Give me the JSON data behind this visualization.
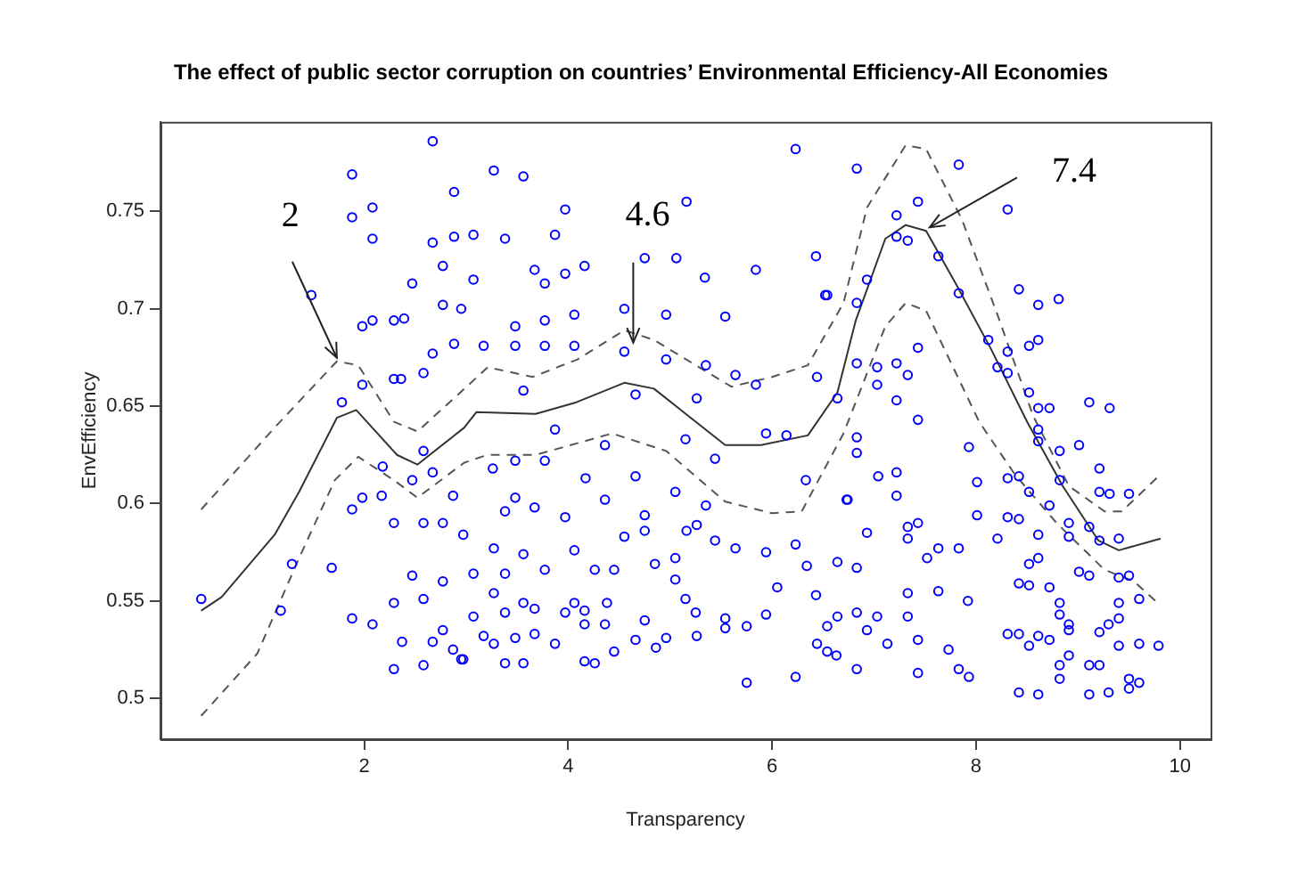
{
  "chart_data": {
    "type": "scatter",
    "title": "The effect of public sector corruption on countries’ Environmental Efficiency-All Economies",
    "xlabel": "Transparency",
    "ylabel": "EnvEfficiency",
    "xlim": [
      0.0,
      10.3
    ],
    "xticks": [
      2,
      4,
      6,
      8,
      10
    ],
    "ylim": [
      0.479,
      0.796
    ],
    "yticks": [
      0.5,
      0.55,
      0.6,
      0.65,
      0.7,
      0.75
    ],
    "series": [
      {
        "type": "scatter",
        "marker": "circle",
        "color": "#0000ff",
        "x": [
          0.4,
          1.18,
          1.29,
          1.48,
          1.68,
          1.78,
          1.88,
          1.88,
          1.88,
          1.88,
          2.08,
          2.08,
          1.98,
          1.98,
          1.98,
          2.08,
          2.08,
          2.29,
          2.39,
          2.29,
          2.36,
          2.18,
          2.17,
          2.29,
          2.29,
          2.29,
          2.37,
          2.47,
          2.47,
          2.47,
          2.58,
          2.58,
          2.58,
          2.58,
          2.58,
          2.67,
          2.67,
          2.67,
          2.67,
          2.67,
          2.77,
          2.77,
          2.77,
          2.77,
          2.77,
          2.88,
          2.88,
          2.88,
          2.87,
          2.87,
          2.95,
          2.95,
          3.27,
          3.56,
          3.07,
          3.38,
          3.87,
          3.97,
          3.07,
          3.67,
          3.77,
          3.97,
          4.16,
          4.75,
          5.06,
          5.16,
          5.34,
          5.84,
          6.23,
          6.43,
          6.52,
          3.48,
          3.77,
          4.06,
          4.55,
          4.96,
          5.54,
          3.17,
          3.48,
          3.77,
          4.06,
          4.55,
          4.96,
          5.35,
          5.64,
          5.84,
          6.44,
          3.56,
          4.66,
          5.26,
          3.87,
          4.36,
          5.94,
          6.14,
          5.15,
          3.26,
          3.48,
          3.77,
          4.17,
          4.66,
          5.05,
          5.44,
          6.33,
          3.48,
          3.67,
          3.97,
          4.36,
          4.75,
          5.35,
          6.73,
          2.97,
          3.38,
          3.27,
          3.56,
          4.06,
          4.55,
          4.75,
          5.16,
          5.26,
          5.44,
          5.64,
          5.94,
          6.23,
          6.34,
          6.64,
          4.85,
          5.05,
          3.07,
          3.38,
          3.77,
          4.26,
          4.45,
          5.05,
          5.15,
          5.25,
          6.05,
          6.43,
          3.27,
          3.56,
          3.67,
          4.06,
          4.38,
          3.97,
          3.07,
          3.38,
          4.16,
          4.75,
          5.54,
          5.94,
          6.64,
          3.17,
          3.48,
          3.67,
          3.87,
          4.16,
          4.36,
          4.66,
          4.86,
          4.96,
          5.26,
          5.54,
          5.75,
          6.44,
          6.63,
          2.97,
          3.38,
          3.56,
          4.16,
          4.26,
          4.45,
          5.75,
          6.23,
          3.27,
          6.83,
          7.83,
          8.31,
          7.43,
          7.22,
          7.22,
          7.33,
          7.63,
          7.83,
          6.93,
          6.54,
          6.83,
          8.42,
          8.61,
          8.81,
          8.12,
          8.31,
          8.52,
          8.61,
          7.43,
          8.21,
          8.31,
          6.83,
          7.03,
          7.22,
          7.33,
          7.03,
          7.22,
          6.64,
          8.52,
          8.61,
          8.72,
          9.11,
          9.31,
          7.43,
          8.61,
          8.61,
          7.93,
          9.01,
          8.82,
          6.83,
          6.83,
          7.04,
          7.22,
          8.01,
          8.31,
          8.42,
          8.52,
          8.82,
          9.21,
          9.21,
          9.31,
          9.5,
          6.74,
          7.22,
          8.01,
          8.31,
          8.42,
          8.72,
          8.91,
          9.11,
          7.33,
          7.43,
          6.93,
          7.33,
          8.21,
          8.61,
          8.91,
          9.21,
          9.4,
          9.6,
          7.63,
          7.83,
          7.52,
          6.83,
          8.52,
          8.61,
          9.01,
          9.11,
          9.4,
          9.5,
          8.42,
          8.52,
          8.72,
          7.33,
          7.63,
          7.92,
          8.82,
          9.4,
          6.83,
          7.03,
          7.33,
          8.82,
          8.91,
          9.4,
          6.54,
          6.93,
          7.13,
          7.43,
          7.73,
          8.31,
          8.42,
          8.52,
          8.61,
          8.72,
          8.91,
          9.21,
          9.3,
          9.4,
          9.6,
          9.79,
          6.54,
          8.91,
          9.11,
          9.21,
          8.82,
          6.83,
          7.43,
          7.83,
          7.93,
          8.82,
          9.5,
          9.6,
          8.42,
          8.61,
          9.11,
          9.3,
          9.5
        ],
        "values": [
          0.551,
          0.545,
          0.569,
          0.707,
          0.567,
          0.652,
          0.769,
          0.747,
          0.541,
          0.597,
          0.752,
          0.736,
          0.603,
          0.661,
          0.691,
          0.694,
          0.538,
          0.694,
          0.695,
          0.664,
          0.664,
          0.619,
          0.604,
          0.59,
          0.549,
          0.515,
          0.529,
          0.713,
          0.612,
          0.563,
          0.667,
          0.627,
          0.59,
          0.551,
          0.517,
          0.786,
          0.734,
          0.677,
          0.616,
          0.529,
          0.722,
          0.702,
          0.59,
          0.56,
          0.535,
          0.76,
          0.737,
          0.682,
          0.604,
          0.525,
          0.7,
          0.52,
          0.771,
          0.768,
          0.738,
          0.736,
          0.738,
          0.751,
          0.715,
          0.72,
          0.713,
          0.718,
          0.722,
          0.726,
          0.726,
          0.755,
          0.716,
          0.72,
          0.782,
          0.727,
          0.707,
          0.691,
          0.694,
          0.697,
          0.7,
          0.697,
          0.696,
          0.681,
          0.681,
          0.681,
          0.681,
          0.678,
          0.674,
          0.671,
          0.666,
          0.661,
          0.665,
          0.658,
          0.656,
          0.654,
          0.638,
          0.63,
          0.636,
          0.635,
          0.633,
          0.618,
          0.622,
          0.622,
          0.613,
          0.614,
          0.606,
          0.623,
          0.612,
          0.603,
          0.598,
          0.593,
          0.602,
          0.594,
          0.599,
          0.602,
          0.584,
          0.596,
          0.577,
          0.574,
          0.576,
          0.583,
          0.586,
          0.586,
          0.589,
          0.581,
          0.577,
          0.575,
          0.579,
          0.568,
          0.57,
          0.569,
          0.572,
          0.564,
          0.564,
          0.566,
          0.566,
          0.566,
          0.561,
          0.551,
          0.544,
          0.557,
          0.553,
          0.554,
          0.549,
          0.546,
          0.549,
          0.549,
          0.544,
          0.542,
          0.544,
          0.545,
          0.54,
          0.541,
          0.543,
          0.542,
          0.532,
          0.531,
          0.533,
          0.528,
          0.538,
          0.538,
          0.53,
          0.526,
          0.531,
          0.532,
          0.536,
          0.537,
          0.528,
          0.522,
          0.52,
          0.518,
          0.518,
          0.519,
          0.518,
          0.524,
          0.508,
          0.511,
          0.528,
          0.772,
          0.774,
          0.751,
          0.755,
          0.748,
          0.737,
          0.735,
          0.727,
          0.708,
          0.715,
          0.707,
          0.703,
          0.71,
          0.702,
          0.705,
          0.684,
          0.678,
          0.681,
          0.684,
          0.68,
          0.67,
          0.667,
          0.672,
          0.67,
          0.672,
          0.666,
          0.661,
          0.653,
          0.654,
          0.657,
          0.649,
          0.649,
          0.652,
          0.649,
          0.643,
          0.638,
          0.632,
          0.629,
          0.63,
          0.627,
          0.634,
          0.626,
          0.614,
          0.616,
          0.611,
          0.613,
          0.614,
          0.606,
          0.612,
          0.618,
          0.606,
          0.605,
          0.605,
          0.602,
          0.604,
          0.594,
          0.593,
          0.592,
          0.599,
          0.59,
          0.588,
          0.588,
          0.59,
          0.585,
          0.582,
          0.582,
          0.584,
          0.583,
          0.581,
          0.582,
          0.551,
          0.577,
          0.577,
          0.572,
          0.567,
          0.569,
          0.572,
          0.565,
          0.563,
          0.562,
          0.563,
          0.559,
          0.558,
          0.557,
          0.554,
          0.555,
          0.55,
          0.549,
          0.549,
          0.544,
          0.542,
          0.542,
          0.543,
          0.538,
          0.541,
          0.537,
          0.535,
          0.528,
          0.53,
          0.525,
          0.533,
          0.533,
          0.527,
          0.532,
          0.53,
          0.535,
          0.534,
          0.538,
          0.527,
          0.528,
          0.527,
          0.524,
          0.522,
          0.517,
          0.517,
          0.517,
          0.515,
          0.513,
          0.515,
          0.511,
          0.51,
          0.51,
          0.508,
          0.503,
          0.502,
          0.502,
          0.503,
          0.505
        ]
      },
      {
        "type": "line",
        "marker": "none",
        "line_style": "solid",
        "color": "#333333",
        "x": [
          0.4,
          0.6,
          1.12,
          1.36,
          1.73,
          1.92,
          2.32,
          2.52,
          2.98,
          3.1,
          3.68,
          4.08,
          4.55,
          4.84,
          5.54,
          5.89,
          6.35,
          6.64,
          6.82,
          7.11,
          7.31,
          7.51,
          7.8,
          8.15,
          8.5,
          8.85,
          9.2,
          9.4,
          9.81
        ],
        "values": [
          0.545,
          0.552,
          0.584,
          0.606,
          0.644,
          0.648,
          0.625,
          0.62,
          0.639,
          0.647,
          0.646,
          0.652,
          0.662,
          0.659,
          0.63,
          0.63,
          0.635,
          0.657,
          0.694,
          0.736,
          0.743,
          0.74,
          0.713,
          0.679,
          0.642,
          0.609,
          0.581,
          0.576,
          0.582
        ]
      },
      {
        "type": "line",
        "marker": "none",
        "line_style": "dashed",
        "color": "#555555",
        "x": [
          0.4,
          1.12,
          1.73,
          1.94,
          2.29,
          2.52,
          2.92,
          3.21,
          3.65,
          4.09,
          4.55,
          4.84,
          5.6,
          6.0,
          6.35,
          6.7,
          6.93,
          7.31,
          7.51,
          7.86,
          8.21,
          8.56,
          8.91,
          9.26,
          9.43,
          9.81
        ],
        "values": [
          0.597,
          0.639,
          0.673,
          0.671,
          0.642,
          0.637,
          0.656,
          0.67,
          0.665,
          0.674,
          0.689,
          0.684,
          0.66,
          0.665,
          0.671,
          0.703,
          0.752,
          0.784,
          0.782,
          0.746,
          0.697,
          0.645,
          0.609,
          0.596,
          0.596,
          0.615
        ]
      },
      {
        "type": "line",
        "marker": "none",
        "line_style": "dashed",
        "color": "#555555",
        "x": [
          0.4,
          0.95,
          1.36,
          1.71,
          1.94,
          2.29,
          2.52,
          2.98,
          3.21,
          3.68,
          4.09,
          4.43,
          4.96,
          5.54,
          6.0,
          6.29,
          6.7,
          7.11,
          7.31,
          7.51,
          8.03,
          8.38,
          8.79,
          9.26,
          9.55,
          9.78
        ],
        "values": [
          0.491,
          0.523,
          0.572,
          0.612,
          0.624,
          0.612,
          0.603,
          0.621,
          0.625,
          0.625,
          0.631,
          0.636,
          0.627,
          0.601,
          0.595,
          0.596,
          0.636,
          0.691,
          0.703,
          0.699,
          0.642,
          0.615,
          0.59,
          0.566,
          0.56,
          0.549
        ]
      }
    ],
    "annotations": [
      {
        "text": "2",
        "x": 1.73,
        "y": 0.673
      },
      {
        "text": "4.6",
        "x": 4.55,
        "y": 0.689
      },
      {
        "text": "7.4",
        "x": 7.51,
        "y": 0.74
      }
    ]
  }
}
